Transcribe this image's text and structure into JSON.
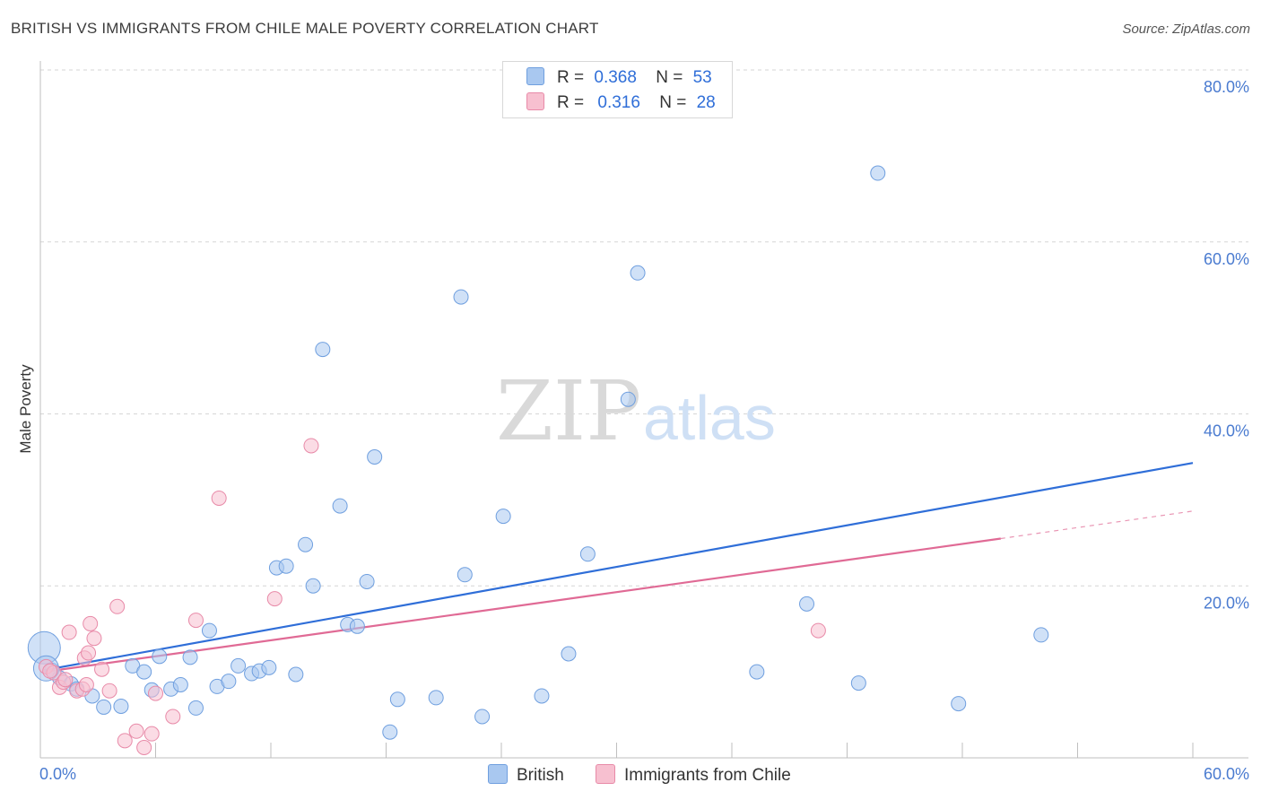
{
  "header": {
    "title": "BRITISH VS IMMIGRANTS FROM CHILE MALE POVERTY CORRELATION CHART",
    "source": "Source: ZipAtlas.com"
  },
  "watermark": {
    "zip": "ZIP",
    "atlas": "atlas"
  },
  "legend": {
    "british": {
      "r_label": "R =",
      "r_value": "0.368",
      "n_label": "N =",
      "n_value": "53"
    },
    "chile": {
      "r_label": "R =",
      "r_value": "0.316",
      "n_label": "N =",
      "n_value": "28"
    }
  },
  "bottom_legend": {
    "british": "British",
    "chile": "Immigrants from Chile"
  },
  "colors": {
    "british_fill": "#a9c8f0",
    "british_stroke": "#6f9fdf",
    "british_line": "#2f6ed8",
    "chile_fill": "#f7c0d0",
    "chile_stroke": "#e88aa8",
    "chile_line": "#e06a95",
    "axis_text": "#4a7bd0",
    "grid": "#d6d6d6"
  },
  "chart_data": {
    "type": "scatter",
    "title": "BRITISH VS IMMIGRANTS FROM CHILE MALE POVERTY CORRELATION CHART",
    "xlabel": "",
    "ylabel": "Male Poverty",
    "xlim": [
      0,
      60
    ],
    "ylim": [
      0,
      80
    ],
    "x_tick_labels": [
      "0.0%",
      "60.0%"
    ],
    "y_ticks": [
      20,
      40,
      60,
      80
    ],
    "y_tick_labels": [
      "20.0%",
      "40.0%",
      "60.0%",
      "80.0%"
    ],
    "grid": true,
    "legend_position": "top-center",
    "series": [
      {
        "name": "British",
        "points": [
          [
            0.2,
            12.8
          ],
          [
            0.6,
            10.2
          ],
          [
            1.0,
            9.3
          ],
          [
            1.6,
            8.6
          ],
          [
            1.9,
            8.0
          ],
          [
            2.7,
            7.2
          ],
          [
            3.3,
            5.9
          ],
          [
            4.2,
            6.0
          ],
          [
            4.8,
            10.7
          ],
          [
            5.4,
            10.0
          ],
          [
            5.8,
            7.9
          ],
          [
            6.2,
            11.8
          ],
          [
            6.8,
            8.0
          ],
          [
            7.3,
            8.5
          ],
          [
            7.8,
            11.7
          ],
          [
            8.1,
            5.8
          ],
          [
            8.8,
            14.8
          ],
          [
            9.2,
            8.3
          ],
          [
            9.8,
            8.9
          ],
          [
            10.3,
            10.7
          ],
          [
            11.0,
            9.8
          ],
          [
            11.4,
            10.1
          ],
          [
            11.9,
            10.5
          ],
          [
            12.3,
            22.1
          ],
          [
            12.8,
            22.3
          ],
          [
            13.3,
            9.7
          ],
          [
            13.8,
            24.8
          ],
          [
            14.2,
            20.0
          ],
          [
            14.7,
            47.5
          ],
          [
            15.6,
            29.3
          ],
          [
            16.0,
            15.5
          ],
          [
            16.5,
            15.3
          ],
          [
            17.0,
            20.5
          ],
          [
            17.4,
            35.0
          ],
          [
            18.2,
            3.0
          ],
          [
            18.6,
            6.8
          ],
          [
            20.6,
            7.0
          ],
          [
            21.9,
            53.6
          ],
          [
            22.1,
            21.3
          ],
          [
            23.0,
            4.8
          ],
          [
            24.1,
            28.1
          ],
          [
            26.1,
            7.2
          ],
          [
            27.5,
            12.1
          ],
          [
            28.5,
            23.7
          ],
          [
            30.6,
            41.7
          ],
          [
            31.1,
            56.4
          ],
          [
            37.3,
            10.0
          ],
          [
            39.9,
            17.9
          ],
          [
            43.6,
            68.0
          ],
          [
            42.6,
            8.7
          ],
          [
            47.8,
            6.3
          ],
          [
            52.1,
            14.3
          ],
          [
            0.3,
            10.4
          ]
        ],
        "trend": {
          "x": [
            0.2,
            60
          ],
          "y": [
            10.2,
            34.3
          ]
        }
      },
      {
        "name": "Immigrants from Chile",
        "points": [
          [
            0.3,
            10.6
          ],
          [
            0.7,
            9.9
          ],
          [
            1.0,
            8.2
          ],
          [
            1.2,
            8.8
          ],
          [
            1.5,
            14.6
          ],
          [
            1.9,
            7.8
          ],
          [
            2.2,
            8.0
          ],
          [
            2.3,
            11.6
          ],
          [
            2.5,
            12.2
          ],
          [
            2.6,
            15.6
          ],
          [
            2.8,
            13.9
          ],
          [
            3.2,
            10.3
          ],
          [
            3.6,
            7.8
          ],
          [
            4.0,
            17.6
          ],
          [
            4.4,
            2.0
          ],
          [
            5.0,
            3.1
          ],
          [
            5.4,
            1.2
          ],
          [
            5.8,
            2.8
          ],
          [
            6.0,
            7.5
          ],
          [
            6.9,
            4.8
          ],
          [
            8.1,
            16.0
          ],
          [
            9.3,
            30.2
          ],
          [
            12.2,
            18.5
          ],
          [
            14.1,
            36.3
          ],
          [
            40.5,
            14.8
          ],
          [
            0.5,
            10.1
          ],
          [
            1.3,
            9.1
          ],
          [
            2.4,
            8.5
          ]
        ],
        "trend_solid": {
          "x": [
            0.2,
            50
          ],
          "y": [
            10.0,
            25.5
          ]
        },
        "trend_dashed": {
          "x": [
            50,
            60
          ],
          "y": [
            25.5,
            28.7
          ]
        }
      }
    ]
  }
}
